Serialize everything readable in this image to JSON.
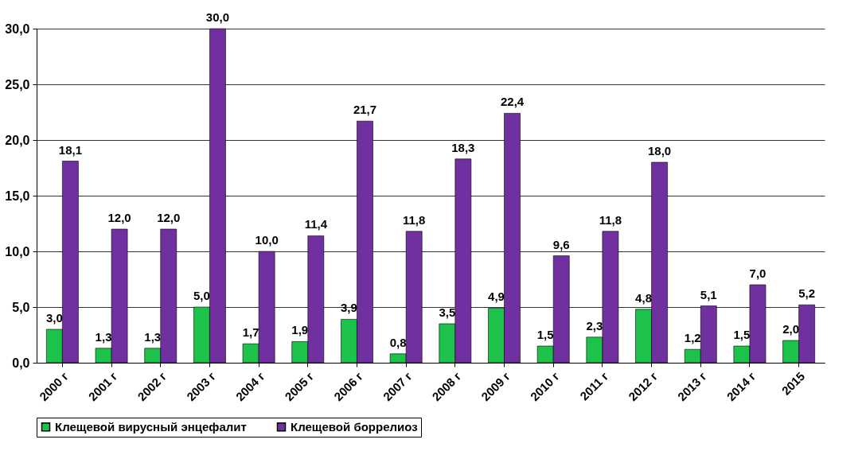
{
  "chart_data": {
    "type": "bar",
    "categories": [
      "2000 г",
      "2001 г",
      "2002 г",
      "2003 г",
      "2004 г",
      "2005 г",
      "2006 г",
      "2007 г",
      "2008 г",
      "2009 г",
      "2010 г",
      "2011 г",
      "2012 г",
      "2013 г",
      "2014 г",
      "2015"
    ],
    "series": [
      {
        "name": "Клещевой  вирусный энцефалит",
        "color": "#1cc24a",
        "values": [
          3.0,
          1.3,
          1.3,
          5.0,
          1.7,
          1.9,
          3.9,
          0.8,
          3.5,
          4.9,
          1.5,
          2.3,
          4.8,
          1.2,
          1.5,
          2.0
        ],
        "value_labels": [
          "3,0",
          "1,3",
          "1,3",
          "5,0",
          "1,7",
          "1,9",
          "3,9",
          "0,8",
          "3,5",
          "4,9",
          "1,5",
          "2,3",
          "4,8",
          "1,2",
          "1,5",
          "2,0"
        ]
      },
      {
        "name": "Клещевой боррелиоз",
        "color": "#7030a0",
        "values": [
          18.1,
          12.0,
          12.0,
          30.0,
          10.0,
          11.4,
          21.7,
          11.8,
          18.3,
          22.4,
          9.6,
          11.8,
          18.0,
          5.1,
          7.0,
          5.2
        ],
        "value_labels": [
          "18,1",
          "12,0",
          "12,0",
          "30,0",
          "10,0",
          "11,4",
          "21,7",
          "11,8",
          "18,3",
          "22,4",
          "9,6",
          "11,8",
          "18,0",
          "5,1",
          "7,0",
          "5,2"
        ]
      }
    ],
    "ylim": [
      0,
      30
    ],
    "yticks": [
      {
        "value": 0,
        "label": "0,0"
      },
      {
        "value": 5,
        "label": "5,0"
      },
      {
        "value": 10,
        "label": "10,0"
      },
      {
        "value": 15,
        "label": "15,0"
      },
      {
        "value": 20,
        "label": "20,0"
      },
      {
        "value": 25,
        "label": "25,0"
      },
      {
        "value": 30,
        "label": "30,0"
      }
    ],
    "grid": "y",
    "legend": "bottom"
  }
}
